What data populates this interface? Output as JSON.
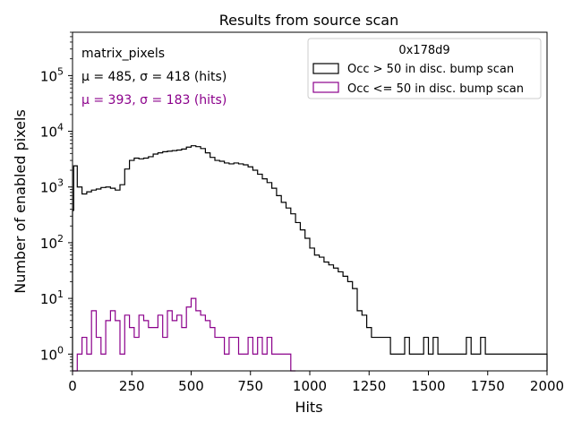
{
  "chart_data": {
    "type": "histogram",
    "title": "Results from source scan",
    "xlabel": "Hits",
    "ylabel": "Number of enabled pixels",
    "xlim": [
      0,
      2000
    ],
    "ylim_log": [
      0.5,
      600000
    ],
    "yscale": "log",
    "bin_width": 20,
    "x_ticks": [
      0,
      250,
      500,
      750,
      1000,
      1250,
      1500,
      1750,
      2000
    ],
    "x_tick_labels": [
      "0",
      "250",
      "500",
      "750",
      "1000",
      "1250",
      "1500",
      "1750",
      "2000"
    ],
    "y_ticks": [
      1,
      10,
      100,
      1000,
      10000,
      100000
    ],
    "y_tick_exponents": [
      "0",
      "1",
      "2",
      "3",
      "4",
      "5"
    ],
    "annotation": {
      "label": "matrix_pixels",
      "stats_black": "μ = 485, σ = 418 (hits)",
      "stats_purple": "μ = 393, σ = 183 (hits)"
    },
    "legend": {
      "title": "0x178d9",
      "placement": "top-right"
    },
    "series": [
      {
        "name": "Occ > 50 in disc. bump scan",
        "color": "#000000",
        "bins": [
          [
            0,
            380
          ],
          [
            5,
            2400
          ],
          [
            20,
            1000
          ],
          [
            40,
            750
          ],
          [
            60,
            820
          ],
          [
            80,
            880
          ],
          [
            100,
            920
          ],
          [
            120,
            980
          ],
          [
            140,
            1000
          ],
          [
            160,
            950
          ],
          [
            180,
            880
          ],
          [
            200,
            1100
          ],
          [
            220,
            2100
          ],
          [
            240,
            3000
          ],
          [
            260,
            3300
          ],
          [
            280,
            3200
          ],
          [
            300,
            3300
          ],
          [
            320,
            3500
          ],
          [
            340,
            3900
          ],
          [
            360,
            4100
          ],
          [
            380,
            4300
          ],
          [
            400,
            4400
          ],
          [
            420,
            4500
          ],
          [
            440,
            4600
          ],
          [
            460,
            4800
          ],
          [
            480,
            5200
          ],
          [
            500,
            5500
          ],
          [
            520,
            5300
          ],
          [
            540,
            4900
          ],
          [
            560,
            4100
          ],
          [
            580,
            3400
          ],
          [
            600,
            3000
          ],
          [
            620,
            2900
          ],
          [
            640,
            2700
          ],
          [
            660,
            2600
          ],
          [
            680,
            2700
          ],
          [
            700,
            2600
          ],
          [
            720,
            2500
          ],
          [
            740,
            2300
          ],
          [
            760,
            2000
          ],
          [
            780,
            1700
          ],
          [
            800,
            1400
          ],
          [
            820,
            1200
          ],
          [
            840,
            950
          ],
          [
            860,
            700
          ],
          [
            880,
            530
          ],
          [
            900,
            420
          ],
          [
            920,
            330
          ],
          [
            940,
            230
          ],
          [
            960,
            170
          ],
          [
            980,
            120
          ],
          [
            1000,
            80
          ],
          [
            1020,
            60
          ],
          [
            1040,
            55
          ],
          [
            1060,
            45
          ],
          [
            1080,
            40
          ],
          [
            1100,
            35
          ],
          [
            1120,
            30
          ],
          [
            1140,
            25
          ],
          [
            1160,
            20
          ],
          [
            1180,
            15
          ],
          [
            1200,
            6
          ],
          [
            1220,
            5
          ],
          [
            1240,
            3
          ],
          [
            1260,
            2
          ],
          [
            1280,
            2
          ],
          [
            1300,
            2
          ],
          [
            1320,
            2
          ],
          [
            1340,
            1
          ],
          [
            1360,
            1
          ],
          [
            1380,
            1
          ],
          [
            1400,
            2
          ],
          [
            1420,
            1
          ],
          [
            1440,
            1
          ],
          [
            1460,
            1
          ],
          [
            1480,
            2
          ],
          [
            1500,
            1
          ],
          [
            1520,
            2
          ],
          [
            1540,
            1
          ],
          [
            1560,
            1
          ],
          [
            1580,
            1
          ],
          [
            1600,
            1
          ],
          [
            1620,
            1
          ],
          [
            1640,
            1
          ],
          [
            1660,
            2
          ],
          [
            1680,
            1
          ],
          [
            1700,
            1
          ],
          [
            1720,
            2
          ],
          [
            1740,
            1
          ],
          [
            1760,
            1
          ],
          [
            1780,
            1
          ],
          [
            1800,
            1
          ],
          [
            1820,
            1
          ],
          [
            1840,
            1
          ],
          [
            1860,
            1
          ],
          [
            1880,
            1
          ],
          [
            1900,
            1
          ],
          [
            1920,
            1
          ],
          [
            1940,
            1
          ],
          [
            1960,
            1
          ],
          [
            1980,
            1
          ]
        ]
      },
      {
        "name": "Occ <= 50 in disc. bump scan",
        "color": "#8b008b",
        "bins": [
          [
            0,
            0
          ],
          [
            20,
            1
          ],
          [
            40,
            2
          ],
          [
            60,
            1
          ],
          [
            80,
            6
          ],
          [
            100,
            2
          ],
          [
            120,
            1
          ],
          [
            140,
            4
          ],
          [
            160,
            6
          ],
          [
            180,
            4
          ],
          [
            200,
            1
          ],
          [
            220,
            5
          ],
          [
            240,
            3
          ],
          [
            260,
            2
          ],
          [
            280,
            5
          ],
          [
            300,
            4
          ],
          [
            320,
            3
          ],
          [
            340,
            3
          ],
          [
            360,
            5
          ],
          [
            380,
            2
          ],
          [
            400,
            6
          ],
          [
            420,
            4
          ],
          [
            440,
            5
          ],
          [
            460,
            3
          ],
          [
            480,
            7
          ],
          [
            500,
            10
          ],
          [
            520,
            6
          ],
          [
            540,
            5
          ],
          [
            560,
            4
          ],
          [
            580,
            3
          ],
          [
            600,
            2
          ],
          [
            620,
            2
          ],
          [
            640,
            1
          ],
          [
            660,
            2
          ],
          [
            680,
            2
          ],
          [
            700,
            1
          ],
          [
            720,
            1
          ],
          [
            740,
            2
          ],
          [
            760,
            1
          ],
          [
            780,
            2
          ],
          [
            800,
            1
          ],
          [
            820,
            2
          ],
          [
            840,
            1
          ],
          [
            860,
            1
          ],
          [
            880,
            1
          ],
          [
            900,
            1
          ],
          [
            920,
            0
          ]
        ]
      }
    ]
  }
}
